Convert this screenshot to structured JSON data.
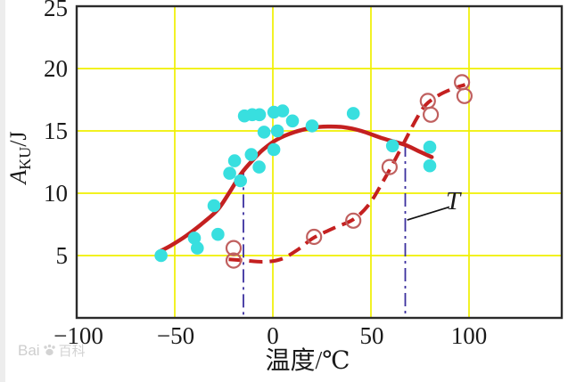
{
  "watermark": {
    "brand": "Bai",
    "suffix": "百科"
  },
  "chart_data": {
    "type": "scatter",
    "title": "",
    "xlabel": "温度/℃",
    "ylabel": "AKU/J",
    "ylabel_parts": {
      "symbol": "A",
      "subscript": "KU",
      "unit": "/J"
    },
    "xlim": [
      -100,
      147
    ],
    "ylim": [
      0,
      25
    ],
    "grid": true,
    "grid_color": "#f0f000",
    "x_ticks": [
      -100,
      -50,
      0,
      50,
      100
    ],
    "x_tick_labels": [
      "−100",
      "−50",
      "0",
      "50",
      "100"
    ],
    "y_ticks": [
      25,
      20,
      15,
      10,
      5
    ],
    "y_tick_labels": [
      "25",
      "20",
      "15",
      "10",
      "5"
    ],
    "grid_x_lines": [
      -50,
      0,
      50,
      100
    ],
    "grid_y_lines": [
      5,
      10,
      15,
      20
    ],
    "series": [
      {
        "name": "impact-energy-samples",
        "marker": "filled-circle",
        "color": "#38dfdf",
        "points": [
          [
            -57,
            5.0
          ],
          [
            -40,
            6.4
          ],
          [
            -38.5,
            5.6
          ],
          [
            -28,
            6.7
          ],
          [
            -30,
            9.0
          ],
          [
            -22,
            11.6
          ],
          [
            -16.5,
            11.0
          ],
          [
            -19.5,
            12.6
          ],
          [
            -11,
            13.1
          ],
          [
            -7,
            12.1
          ],
          [
            -14.5,
            16.2
          ],
          [
            -10.5,
            16.3
          ],
          [
            -6.8,
            16.3
          ],
          [
            0.5,
            16.5
          ],
          [
            5,
            16.6
          ],
          [
            10,
            15.8
          ],
          [
            -4.5,
            14.9
          ],
          [
            2.3,
            15.0
          ],
          [
            0.5,
            13.5
          ],
          [
            20,
            15.4
          ],
          [
            41,
            16.4
          ],
          [
            61,
            13.8
          ],
          [
            80,
            13.7
          ],
          [
            80,
            12.2
          ]
        ]
      },
      {
        "name": "second-condition-samples",
        "marker": "open-circle",
        "color": "#c0605f",
        "points": [
          [
            -20,
            5.6
          ],
          [
            -20,
            4.6
          ],
          [
            21,
            6.5
          ],
          [
            41,
            7.8
          ],
          [
            59.5,
            12.1
          ],
          [
            79,
            17.4
          ],
          [
            80.5,
            16.3
          ],
          [
            96.4,
            18.9
          ],
          [
            97.7,
            17.8
          ]
        ]
      },
      {
        "name": "upper-fit-curve",
        "marker": "line-solid",
        "color": "#c42020",
        "points": [
          [
            -58,
            5.3
          ],
          [
            -52,
            5.8
          ],
          [
            -44,
            6.6
          ],
          [
            -35,
            7.7
          ],
          [
            -28,
            8.7
          ],
          [
            -22,
            10.1
          ],
          [
            -16,
            11.6
          ],
          [
            -10,
            12.7
          ],
          [
            -5,
            13.5
          ],
          [
            2,
            14.3
          ],
          [
            11,
            14.9
          ],
          [
            20,
            15.25
          ],
          [
            28,
            15.35
          ],
          [
            36,
            15.3
          ],
          [
            45,
            15.0
          ],
          [
            56,
            14.4
          ],
          [
            67,
            13.9
          ],
          [
            74,
            13.4
          ],
          [
            81,
            12.9
          ]
        ]
      },
      {
        "name": "lower-fit-curve",
        "marker": "line-dashed",
        "color": "#c42020",
        "points": [
          [
            -22.5,
            4.7
          ],
          [
            -14,
            4.6
          ],
          [
            -5,
            4.5
          ],
          [
            4,
            4.7
          ],
          [
            13,
            5.5
          ],
          [
            20.5,
            6.4
          ],
          [
            31,
            7.2
          ],
          [
            41,
            7.9
          ],
          [
            49,
            9.1
          ],
          [
            56,
            10.9
          ],
          [
            62,
            12.6
          ],
          [
            67,
            14.1
          ],
          [
            73,
            15.9
          ],
          [
            78,
            17.1
          ],
          [
            85,
            17.9
          ],
          [
            92,
            18.4
          ],
          [
            98,
            18.7
          ]
        ]
      }
    ],
    "reference_lines": [
      {
        "x": -15,
        "y_top": 11.9,
        "color": "#3b2f9e",
        "style": "dash-dot"
      },
      {
        "x": 67.5,
        "y_top": 14.0,
        "color": "#3b2f9e",
        "style": "dash-dot"
      }
    ],
    "annotation": {
      "label": "T",
      "pointer_from": [
        68.5,
        7.85
      ],
      "pointer_to": [
        90,
        8.9
      ]
    }
  }
}
